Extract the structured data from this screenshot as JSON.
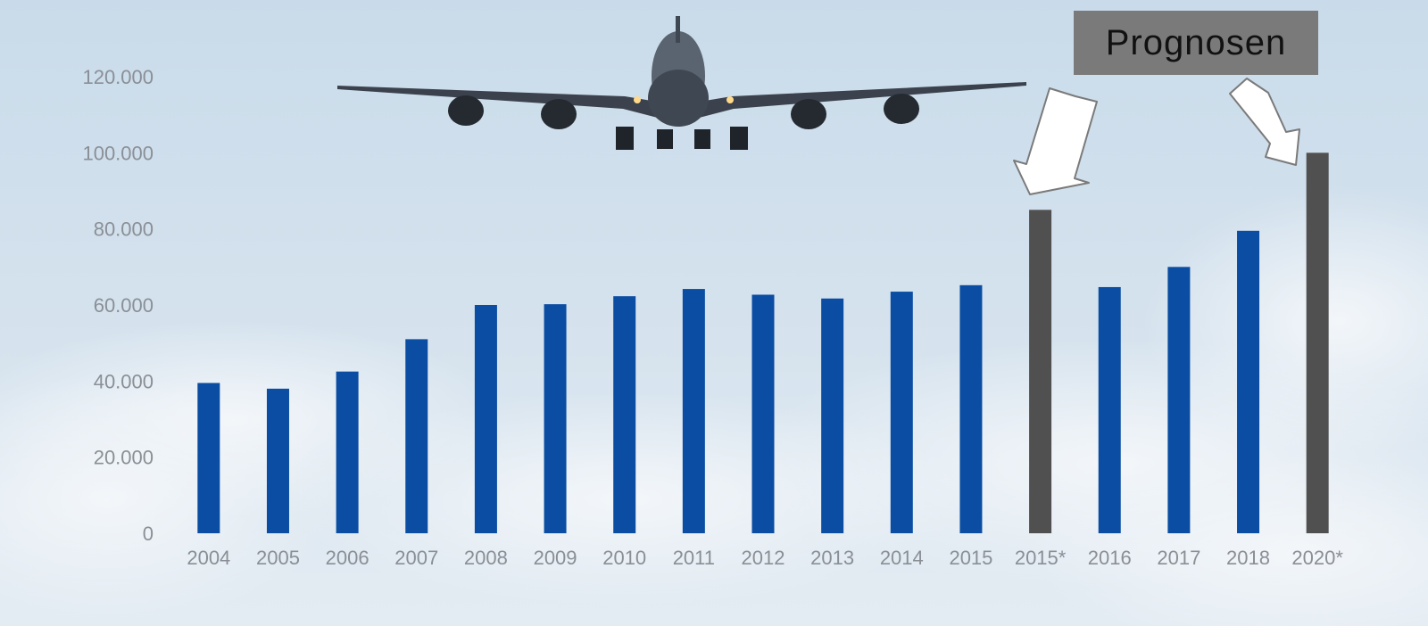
{
  "callout": {
    "label": "Prognosen"
  },
  "colors": {
    "actual": "#0a4da2",
    "forecast": "#505050",
    "axis_text": "#8a8f96"
  },
  "chart_data": {
    "type": "bar",
    "title": "",
    "xlabel": "",
    "ylabel": "",
    "ylim": [
      0,
      120000
    ],
    "y_ticks": [
      {
        "value": 0,
        "label": "0"
      },
      {
        "value": 20000,
        "label": "20.000"
      },
      {
        "value": 40000,
        "label": "40.000"
      },
      {
        "value": 60000,
        "label": "60.000"
      },
      {
        "value": 80000,
        "label": "80.000"
      },
      {
        "value": 100000,
        "label": "100.000"
      },
      {
        "value": 120000,
        "label": "120.000"
      }
    ],
    "grid": false,
    "categories": [
      "2004",
      "2005",
      "2006",
      "2007",
      "2008",
      "2009",
      "2010",
      "2011",
      "2012",
      "2013",
      "2014",
      "2015",
      "2015*",
      "2016",
      "2017",
      "2018",
      "2020*"
    ],
    "values": [
      39500,
      38000,
      42500,
      51000,
      60000,
      60200,
      62300,
      64200,
      62700,
      61700,
      63500,
      65200,
      85000,
      64700,
      70000,
      79500,
      100000
    ],
    "forecast_categories": [
      "2015*",
      "2020*"
    ],
    "annotations": [
      "Prognosen"
    ]
  }
}
